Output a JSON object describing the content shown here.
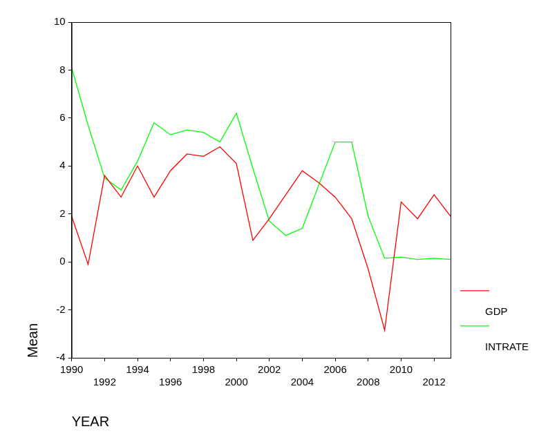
{
  "chart_data": {
    "type": "line",
    "x_label": "YEAR",
    "y_label": "Mean",
    "x": [
      1990,
      1991,
      1992,
      1993,
      1994,
      1995,
      1996,
      1997,
      1998,
      1999,
      2000,
      2001,
      2002,
      2003,
      2004,
      2005,
      2006,
      2007,
      2008,
      2009,
      2010,
      2011,
      2012,
      2013
    ],
    "series": [
      {
        "name": "GDP",
        "color": "#ff0000",
        "values": [
          1.9,
          -0.1,
          3.6,
          2.7,
          4.0,
          2.7,
          3.8,
          4.5,
          4.4,
          4.8,
          4.1,
          0.9,
          1.8,
          2.8,
          3.8,
          3.3,
          2.7,
          1.8,
          -0.3,
          -2.85,
          2.5,
          1.8,
          2.8,
          1.9
        ]
      },
      {
        "name": "INTRATE",
        "color": "#00ff00",
        "values": [
          8.1,
          5.7,
          3.5,
          3.0,
          4.2,
          5.8,
          5.3,
          5.5,
          5.4,
          5.0,
          6.2,
          3.9,
          1.7,
          1.1,
          1.4,
          3.2,
          5.0,
          5.0,
          1.9,
          0.15,
          0.2,
          0.1,
          0.15,
          0.1
        ]
      }
    ],
    "xlim": [
      1990,
      2013
    ],
    "xticks": [
      1990,
      1992,
      1994,
      1996,
      1998,
      2000,
      2002,
      2004,
      2006,
      2008,
      2010,
      2012
    ],
    "ylim": [
      -4,
      10
    ],
    "yticks": [
      -4,
      -2,
      0,
      2,
      4,
      6,
      8,
      10
    ],
    "grid": false,
    "legend": "right"
  }
}
